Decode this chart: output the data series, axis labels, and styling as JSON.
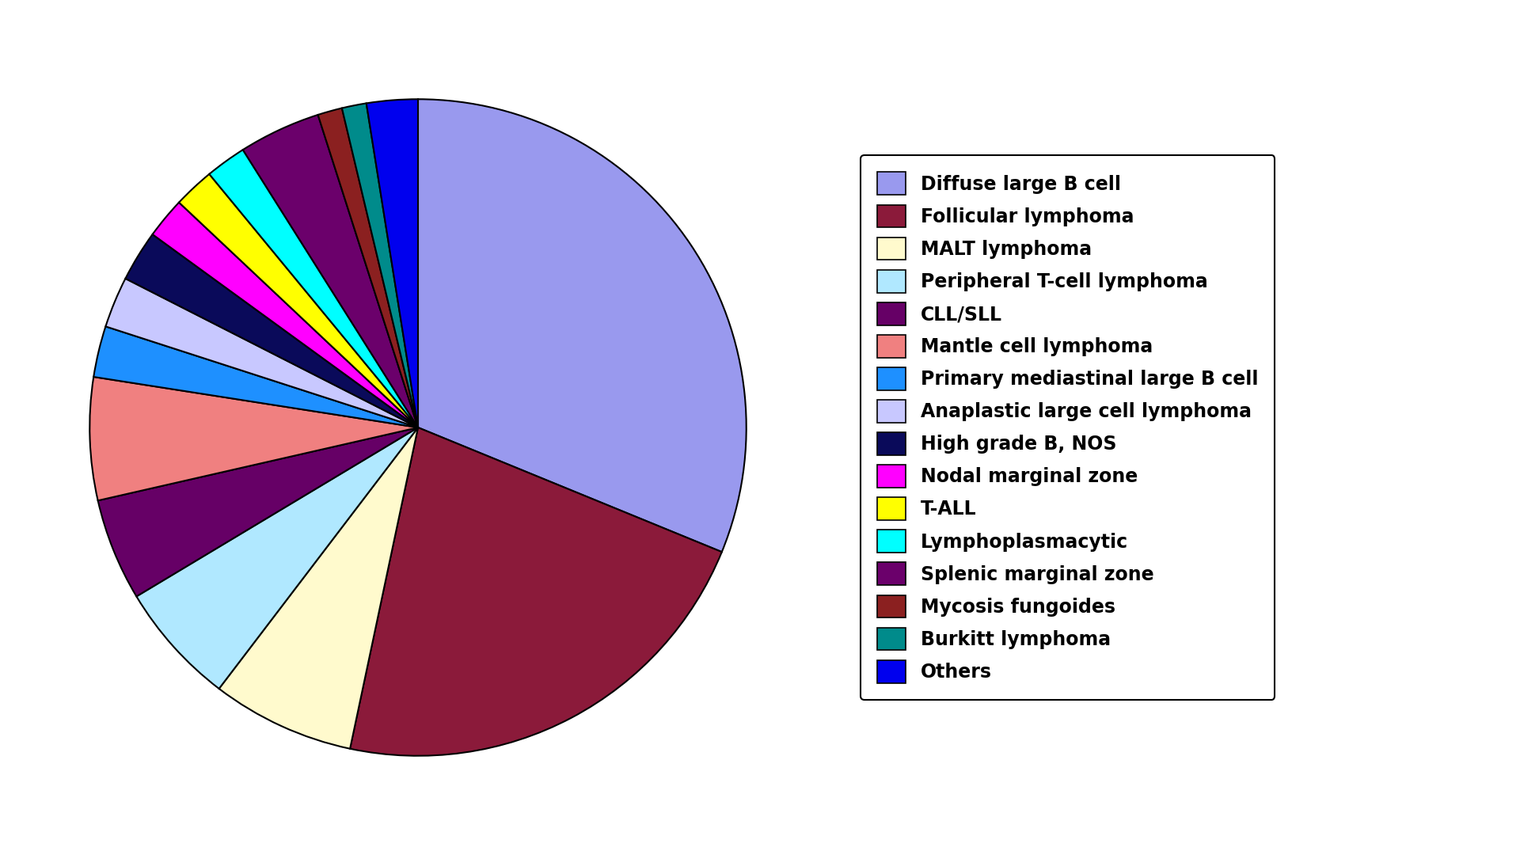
{
  "labels": [
    "Diffuse large B cell",
    "Follicular lymphoma",
    "MALT lymphoma",
    "Peripheral T-cell lymphoma",
    "CLL/SLL",
    "Mantle cell lymphoma",
    "Primary mediastinal large B cell",
    "Anaplastic large cell lymphoma",
    "High grade B, NOS",
    "Nodal marginal zone",
    "T-ALL",
    "Lymphoplasmacytic",
    "Splenic marginal zone",
    "Mycosis fungoides",
    "Burkitt lymphoma",
    "Others"
  ],
  "sizes": [
    31,
    22,
    7,
    6,
    5,
    6,
    2.5,
    2.5,
    2.5,
    2,
    2,
    2,
    4,
    1.2,
    1.2,
    2.5
  ],
  "colors": [
    "#9999EE",
    "#8B1A3A",
    "#FFFACD",
    "#B0E8FF",
    "#660066",
    "#F08080",
    "#1E90FF",
    "#C8C8FF",
    "#0A0A5A",
    "#FF00FF",
    "#FFFF00",
    "#00FFFF",
    "#6B006B",
    "#8B2020",
    "#008B8B",
    "#0000EE"
  ],
  "startangle": 90,
  "figsize": [
    19.2,
    10.8
  ],
  "dpi": 100
}
